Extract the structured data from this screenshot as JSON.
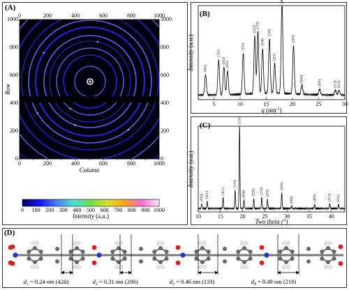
{
  "panel_a": {
    "label": "(A)",
    "ylabel": "Row",
    "xlabel": "Column",
    "xticks": [
      "0",
      "100",
      "200",
      "300",
      "400",
      "500",
      "600",
      "700",
      "800",
      "900",
      "1000"
    ],
    "yticks": [
      "0",
      "100",
      "200",
      "300",
      "400",
      "500",
      "600",
      "700",
      "800",
      "900",
      "1000"
    ],
    "colorbar": {
      "ticks": [
        "0",
        "100",
        "200",
        "300",
        "400",
        "500",
        "600",
        "700",
        "800",
        "900",
        "1000"
      ],
      "label": "Intensity",
      "unit": "(a.u.)"
    }
  },
  "panel_b": {
    "label": "(B)"
  },
  "panel_c": {
    "label": "(C)"
  },
  "panel_d": {
    "label": "(D)",
    "spacings": [
      {
        "sym": "d",
        "sub": "1",
        "text": " = 0.24 nm (420)"
      },
      {
        "sym": "d",
        "sub": "2",
        "text": " = 0.31 nm (200)"
      },
      {
        "sym": "d",
        "sub": "3",
        "text": " = 0.46 nm (110)"
      },
      {
        "sym": "d",
        "sub": "4",
        "text": " = 0.49 nm (210)"
      }
    ]
  },
  "colors": {
    "ring": "#2a2ae0",
    "ring_bright": "#6d6dff",
    "detector_bg": "#000010",
    "bar": "#000000"
  },
  "chart_data": [
    {
      "type": "line",
      "panel": "B",
      "ylabel": "Intensity (a.u.)",
      "xlabel": "q (nm-1)",
      "xlim": [
        2,
        30
      ],
      "xticks": [
        "5",
        "10",
        "15",
        "20",
        "25",
        "30"
      ],
      "peaks": [
        {
          "x": 3.4,
          "h": 0.22,
          "label": "(001)"
        },
        {
          "x": 5.9,
          "h": 0.38,
          "label": "(111)"
        },
        {
          "x": 6.9,
          "h": 0.3,
          "label": "(002)"
        },
        {
          "x": 7.6,
          "h": 0.26,
          "label": "(201)"
        },
        {
          "x": 10.6,
          "h": 0.44,
          "label": "(101)"
        },
        {
          "x": 12.8,
          "h": 0.62,
          "label": "(210)"
        },
        {
          "x": 13.4,
          "h": 0.66,
          "label": "(110)"
        },
        {
          "x": 14.3,
          "h": 0.48,
          "label": "(004)"
        },
        {
          "x": 15.6,
          "h": 0.58,
          "label": "(120)"
        },
        {
          "x": 16.6,
          "h": 0.32,
          "label": "(201)"
        },
        {
          "x": 18.0,
          "h": 0.98,
          "label": "(403)"
        },
        {
          "x": 20.2,
          "h": 0.52,
          "label": "(200)"
        },
        {
          "x": 21.8,
          "h": 0.1,
          "label": "(006)"
        },
        {
          "x": 25.2,
          "h": 0.06,
          "label": "(420)"
        },
        {
          "x": 28.2,
          "h": 0.05,
          "label": "(013)"
        },
        {
          "x": 28.9,
          "h": 0.05,
          "label": "(011)"
        }
      ]
    },
    {
      "type": "line",
      "panel": "C",
      "ylabel": "Intensity (a.u.)",
      "xlabel": "Two theta (°)",
      "xlim": [
        10,
        43
      ],
      "xticks": [
        "10",
        "15",
        "20",
        "25",
        "30",
        "35",
        "40"
      ],
      "peaks": [
        {
          "x": 10.8,
          "h": 0.06,
          "label": "(002)"
        },
        {
          "x": 12.0,
          "h": 0.09,
          "label": "(201)"
        },
        {
          "x": 15.6,
          "h": 0.13,
          "label": "(301)"
        },
        {
          "x": 18.3,
          "h": 0.22,
          "label": "(210)"
        },
        {
          "x": 19.3,
          "h": 1.0,
          "label": "(110)"
        },
        {
          "x": 20.3,
          "h": 0.1,
          "label": "(004)"
        },
        {
          "x": 22.5,
          "h": 0.12,
          "label": "(120)"
        },
        {
          "x": 24.3,
          "h": 0.13,
          "label": "(103)"
        },
        {
          "x": 25.6,
          "h": 0.11,
          "label": "(201)"
        },
        {
          "x": 28.8,
          "h": 0.19,
          "label": "(200)"
        },
        {
          "x": 31.0,
          "h": 0.03,
          "label": "(006)"
        },
        {
          "x": 36.2,
          "h": 0.05,
          "label": "(420)"
        },
        {
          "x": 39.6,
          "h": 0.06,
          "label": "(013)"
        },
        {
          "x": 41.6,
          "h": 0.05,
          "label": "(011)"
        }
      ]
    }
  ]
}
